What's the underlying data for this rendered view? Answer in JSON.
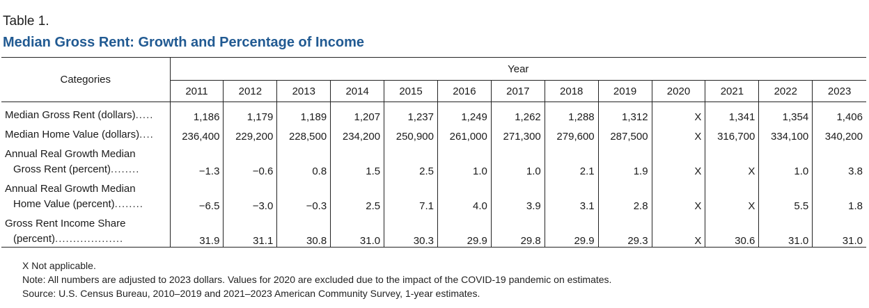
{
  "table_label": "Table 1.",
  "title": "Median Gross Rent: Growth and Percentage of Income",
  "header": {
    "categories_label": "Categories",
    "year_label": "Year",
    "years": [
      "2011",
      "2012",
      "2013",
      "2014",
      "2015",
      "2016",
      "2017",
      "2018",
      "2019",
      "2020",
      "2021",
      "2022",
      "2023"
    ]
  },
  "rows": [
    {
      "label_lines": [
        "Median Gross Rent (dollars)"
      ],
      "leader": ".....",
      "values": [
        "1,186",
        "1,179",
        "1,189",
        "1,207",
        "1,237",
        "1,249",
        "1,262",
        "1,288",
        "1,312",
        "X",
        "1,341",
        "1,354",
        "1,406"
      ]
    },
    {
      "label_lines": [
        "Median Home Value (dollars)"
      ],
      "leader": "....",
      "values": [
        "236,400",
        "229,200",
        "228,500",
        "234,200",
        "250,900",
        "261,000",
        "271,300",
        "279,600",
        "287,500",
        "X",
        "316,700",
        "334,100",
        "340,200"
      ]
    },
    {
      "label_lines": [
        "Annual Real Growth Median",
        "Gross Rent (percent)"
      ],
      "leader": "........",
      "values": [
        "−1.3",
        "−0.6",
        "0.8",
        "1.5",
        "2.5",
        "1.0",
        "1.0",
        "2.1",
        "1.9",
        "X",
        "X",
        "1.0",
        "3.8"
      ]
    },
    {
      "label_lines": [
        "Annual Real Growth Median",
        "Home Value (percent)"
      ],
      "leader": "........",
      "values": [
        "−6.5",
        "−3.0",
        "−0.3",
        "2.5",
        "7.1",
        "4.0",
        "3.9",
        "3.1",
        "2.8",
        "X",
        "X",
        "5.5",
        "1.8"
      ]
    },
    {
      "label_lines": [
        "Gross Rent Income Share",
        "(percent)"
      ],
      "leader": "...................",
      "values": [
        "31.9",
        "31.1",
        "30.8",
        "31.0",
        "30.3",
        "29.9",
        "29.8",
        "29.9",
        "29.3",
        "X",
        "30.6",
        "31.0",
        "31.0"
      ]
    }
  ],
  "notes": [
    "X Not applicable.",
    "Note: All numbers are adjusted to 2023 dollars. Values for 2020 are excluded due to the impact of the COVID-19 pandemic on estimates.",
    "Source: U.S. Census Bureau, 2010–2019 and 2021–2023 American Community Survey, 1-year estimates."
  ]
}
